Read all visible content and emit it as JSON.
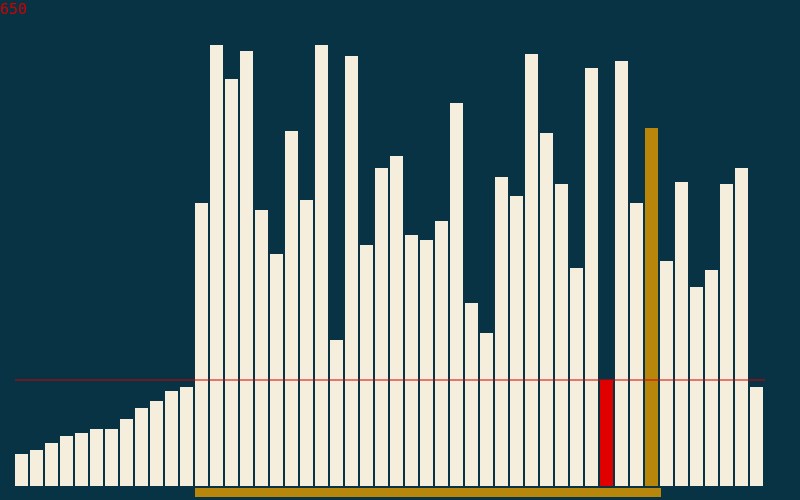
{
  "counter": {
    "label": "650"
  },
  "colors": {
    "background": "#083344",
    "bar": "#F5EEDC",
    "compare": "#E00000",
    "pivot": "#B8860B",
    "range": "#B8860B",
    "threshold": "#D10000",
    "counter": "#D10000"
  },
  "chart_data": {
    "type": "bar",
    "values": [
      32,
      36,
      43,
      50,
      53,
      57,
      57,
      67,
      78,
      85,
      95,
      99,
      283,
      441,
      407,
      435,
      276,
      232,
      355,
      286,
      441,
      146,
      430,
      241,
      318,
      330,
      251,
      246,
      265,
      383,
      183,
      153,
      309,
      290,
      432,
      353,
      302,
      218,
      418,
      106,
      425,
      283,
      358,
      225,
      304,
      199,
      216,
      302,
      318,
      99
    ],
    "ylim": [
      0,
      460
    ],
    "threshold_value": 106,
    "compare_index": 39,
    "pivot_index": 42,
    "active_range": [
      12,
      42
    ]
  }
}
